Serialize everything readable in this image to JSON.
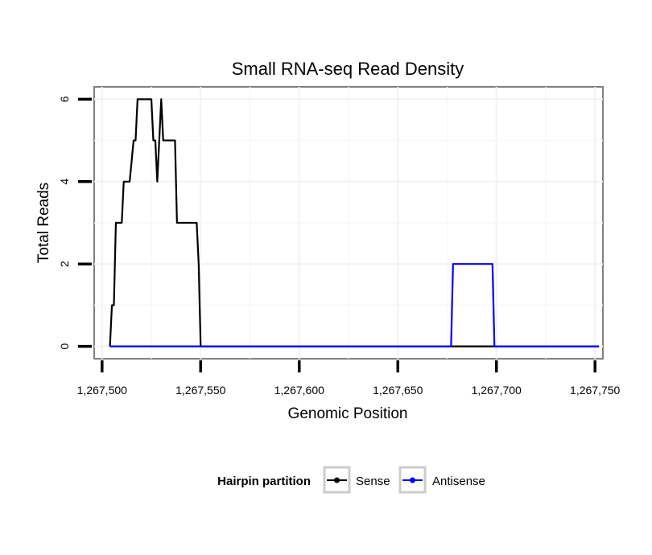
{
  "chart_data": {
    "type": "line",
    "title": "Small RNA-seq Read Density",
    "xlabel": "Genomic Position",
    "ylabel": "Total Reads",
    "xlim": [
      1267496,
      1267754
    ],
    "ylim": [
      -0.3,
      6.3
    ],
    "x_ticks": [
      1267500,
      1267550,
      1267600,
      1267650,
      1267700,
      1267750
    ],
    "x_tick_labels": [
      "1,267,500",
      "1,267,550",
      "1,267,600",
      "1,267,650",
      "1,267,700",
      "1,267,750"
    ],
    "y_ticks": [
      0,
      2,
      4,
      6
    ],
    "y_tick_labels": [
      "0",
      "2",
      "4",
      "6"
    ],
    "grid": true,
    "legend": {
      "title": "Hairpin partition",
      "placement": "bottom",
      "entries": [
        "Sense",
        "Antisense"
      ]
    },
    "series": [
      {
        "name": "Sense",
        "color": "#000000",
        "x": [
          1267504,
          1267505,
          1267506,
          1267507,
          1267508,
          1267510,
          1267511,
          1267513,
          1267514,
          1267516,
          1267517,
          1267518,
          1267519,
          1267520,
          1267525,
          1267526,
          1267527,
          1267528,
          1267529,
          1267530,
          1267531,
          1267532,
          1267533,
          1267537,
          1267538,
          1267540,
          1267545,
          1267547,
          1267548,
          1267549,
          1267550,
          1267552,
          1267752
        ],
        "y": [
          0,
          1,
          1,
          3,
          3,
          3,
          4,
          4,
          4,
          5,
          5,
          6,
          6,
          6,
          6,
          5,
          5,
          4,
          5,
          6,
          5,
          5,
          5,
          5,
          3,
          3,
          3,
          3,
          3,
          2,
          0,
          0,
          0
        ]
      },
      {
        "name": "Antisense",
        "color": "#0000ff",
        "x": [
          1267504,
          1267677,
          1267678,
          1267698,
          1267699,
          1267752
        ],
        "y": [
          0,
          0,
          2,
          2,
          0,
          0
        ]
      }
    ]
  }
}
